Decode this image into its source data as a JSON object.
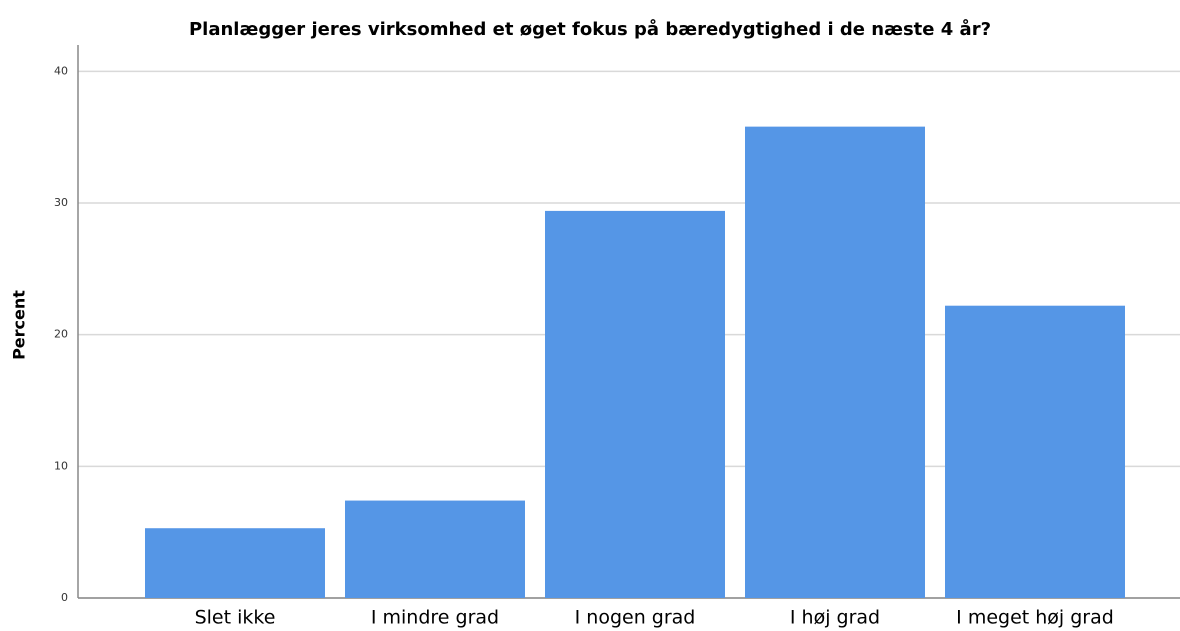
{
  "chart_data": {
    "type": "bar",
    "title": "Planlægger jeres virksomhed et øget fokus på bæredygtighed i de næste 4 år?",
    "y_label": "Percent",
    "categories": [
      "Slet ikke",
      "I mindre grad",
      "I nogen grad",
      "I høj grad",
      "I meget høj grad"
    ],
    "values": [
      5.3,
      7.4,
      29.4,
      35.8,
      22.2
    ],
    "color": "#5596e6",
    "ylim": [
      0,
      42
    ],
    "yticks": [
      0,
      10,
      20,
      30,
      40
    ],
    "grid": true
  }
}
